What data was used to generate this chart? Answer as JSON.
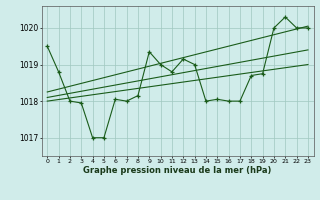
{
  "bg_color": "#d0ecea",
  "grid_color": "#a0c8c0",
  "line_color": "#1a5c1a",
  "xlabel": "Graphe pression niveau de la mer (hPa)",
  "ylim": [
    1016.5,
    1020.6
  ],
  "xlim": [
    -0.5,
    23.5
  ],
  "yticks": [
    1017,
    1018,
    1019,
    1020
  ],
  "pressure_data": [
    1019.5,
    1018.8,
    1018.0,
    1017.95,
    1017.0,
    1017.0,
    1018.05,
    1018.0,
    1018.15,
    1019.35,
    1019.0,
    1018.8,
    1019.15,
    1019.0,
    1018.0,
    1018.05,
    1018.0,
    1018.0,
    1018.7,
    1018.75,
    1020.0,
    1020.3,
    1020.0,
    1020.0
  ],
  "trend1_x": [
    0,
    23
  ],
  "trend1_y": [
    1018.0,
    1019.0
  ],
  "trend2_x": [
    0,
    23
  ],
  "trend2_y": [
    1018.1,
    1019.4
  ],
  "trend3_x": [
    0,
    23
  ],
  "trend3_y": [
    1018.25,
    1020.05
  ]
}
